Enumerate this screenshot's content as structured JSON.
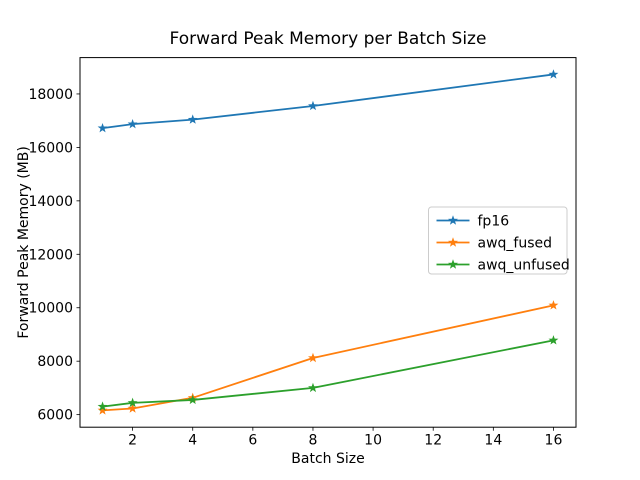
{
  "chart_data": {
    "type": "line",
    "title": "Forward Peak Memory per Batch Size",
    "xlabel": "Batch Size",
    "ylabel": "Forward Peak Memory (MB)",
    "x": [
      1,
      2,
      4,
      8,
      16
    ],
    "series": [
      {
        "name": "fp16",
        "color": "#1f77b4",
        "values": [
          16720,
          16870,
          17040,
          17550,
          18730
        ]
      },
      {
        "name": "awq_fused",
        "color": "#ff7f0e",
        "values": [
          6160,
          6230,
          6630,
          8120,
          10090
        ]
      },
      {
        "name": "awq_unfused",
        "color": "#2ca02c",
        "values": [
          6300,
          6440,
          6550,
          7000,
          8780
        ]
      }
    ],
    "xticks": [
      2,
      4,
      6,
      8,
      10,
      12,
      14,
      16
    ],
    "yticks": [
      6000,
      8000,
      10000,
      12000,
      14000,
      16000,
      18000
    ],
    "xlim": [
      0.25,
      16.75
    ],
    "ylim": [
      5530,
      19360
    ],
    "grid": false,
    "marker": "star",
    "line_width": 1.8,
    "legend": {
      "position": "center right",
      "entries": [
        "fp16",
        "awq_fused",
        "awq_unfused"
      ],
      "border_color": "#cccccc",
      "background": "#ffffff"
    },
    "plot_background": "#ffffff",
    "spine_color": "#000000"
  }
}
